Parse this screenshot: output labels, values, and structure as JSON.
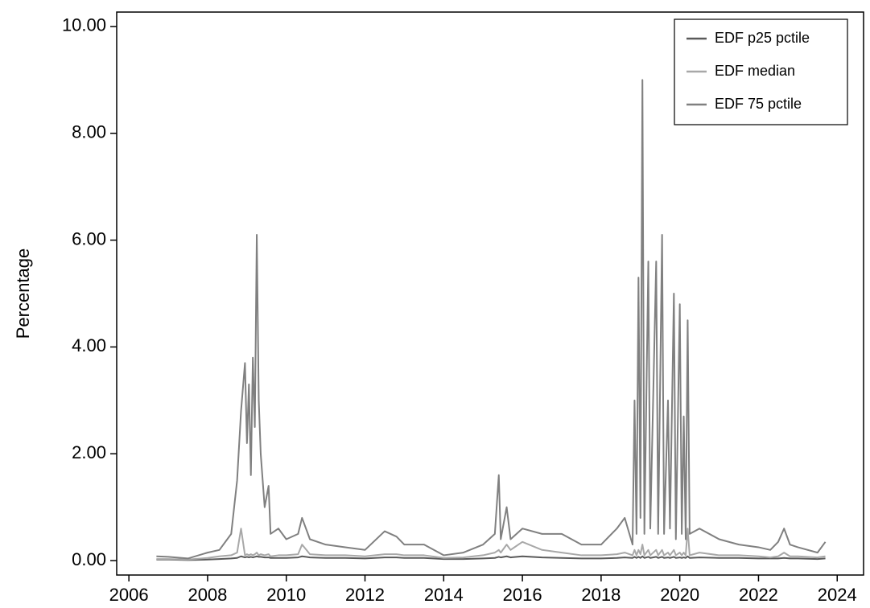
{
  "chart_data": {
    "type": "line",
    "y_label": "Percentage",
    "x": [
      2006.7,
      2007.0,
      2007.5,
      2008.0,
      2008.3,
      2008.6,
      2008.75,
      2008.85,
      2008.95,
      2009.0,
      2009.05,
      2009.1,
      2009.15,
      2009.2,
      2009.25,
      2009.3,
      2009.35,
      2009.45,
      2009.55,
      2009.6,
      2009.8,
      2010.0,
      2010.3,
      2010.4,
      2010.6,
      2011.0,
      2011.5,
      2012.0,
      2012.5,
      2012.8,
      2013.0,
      2013.5,
      2014.0,
      2014.5,
      2015.0,
      2015.3,
      2015.4,
      2015.45,
      2015.6,
      2015.7,
      2016.0,
      2016.5,
      2017.0,
      2017.5,
      2018.0,
      2018.4,
      2018.6,
      2018.8,
      2018.85,
      2018.9,
      2018.95,
      2019.0,
      2019.05,
      2019.1,
      2019.2,
      2019.25,
      2019.4,
      2019.45,
      2019.55,
      2019.6,
      2019.7,
      2019.75,
      2019.85,
      2019.9,
      2020.0,
      2020.05,
      2020.1,
      2020.15,
      2020.2,
      2020.25,
      2020.5,
      2021.0,
      2021.5,
      2022.0,
      2022.3,
      2022.5,
      2022.65,
      2022.8,
      2023.0,
      2023.5,
      2023.7
    ],
    "series": [
      {
        "name": "EDF p25 pctile",
        "color": "#5a5a5a",
        "values": [
          0.02,
          0.02,
          0.01,
          0.02,
          0.03,
          0.04,
          0.05,
          0.08,
          0.06,
          0.07,
          0.06,
          0.07,
          0.06,
          0.07,
          0.08,
          0.07,
          0.07,
          0.06,
          0.06,
          0.05,
          0.05,
          0.05,
          0.06,
          0.08,
          0.06,
          0.05,
          0.05,
          0.04,
          0.06,
          0.06,
          0.05,
          0.05,
          0.03,
          0.03,
          0.04,
          0.05,
          0.07,
          0.06,
          0.08,
          0.06,
          0.08,
          0.06,
          0.05,
          0.04,
          0.04,
          0.05,
          0.06,
          0.05,
          0.07,
          0.05,
          0.07,
          0.05,
          0.08,
          0.05,
          0.07,
          0.05,
          0.07,
          0.05,
          0.07,
          0.05,
          0.06,
          0.05,
          0.07,
          0.05,
          0.06,
          0.05,
          0.06,
          0.05,
          0.08,
          0.05,
          0.06,
          0.05,
          0.05,
          0.04,
          0.04,
          0.04,
          0.05,
          0.04,
          0.04,
          0.03,
          0.04
        ]
      },
      {
        "name": "EDF median",
        "color": "#a8a8a8",
        "values": [
          0.03,
          0.03,
          0.02,
          0.05,
          0.08,
          0.1,
          0.15,
          0.6,
          0.1,
          0.12,
          0.1,
          0.12,
          0.1,
          0.12,
          0.15,
          0.1,
          0.12,
          0.1,
          0.12,
          0.08,
          0.1,
          0.1,
          0.12,
          0.3,
          0.12,
          0.1,
          0.1,
          0.08,
          0.12,
          0.12,
          0.1,
          0.1,
          0.05,
          0.06,
          0.1,
          0.15,
          0.2,
          0.15,
          0.3,
          0.2,
          0.35,
          0.2,
          0.15,
          0.1,
          0.1,
          0.12,
          0.15,
          0.1,
          0.2,
          0.1,
          0.2,
          0.12,
          0.3,
          0.1,
          0.2,
          0.1,
          0.2,
          0.1,
          0.2,
          0.1,
          0.15,
          0.1,
          0.2,
          0.1,
          0.15,
          0.1,
          0.15,
          0.1,
          0.6,
          0.1,
          0.15,
          0.1,
          0.1,
          0.08,
          0.06,
          0.08,
          0.15,
          0.08,
          0.08,
          0.06,
          0.08
        ]
      },
      {
        "name": "EDF 75 pctile",
        "color": "#808080",
        "values": [
          0.08,
          0.07,
          0.04,
          0.15,
          0.2,
          0.5,
          1.5,
          2.8,
          3.7,
          2.2,
          3.3,
          1.6,
          3.8,
          2.5,
          6.1,
          3.0,
          2.0,
          1.0,
          1.4,
          0.5,
          0.6,
          0.4,
          0.5,
          0.8,
          0.4,
          0.3,
          0.25,
          0.2,
          0.55,
          0.45,
          0.3,
          0.3,
          0.1,
          0.15,
          0.3,
          0.5,
          1.6,
          0.4,
          1.0,
          0.4,
          0.6,
          0.5,
          0.5,
          0.3,
          0.3,
          0.6,
          0.8,
          0.3,
          3.0,
          0.5,
          5.3,
          0.8,
          9.0,
          0.5,
          5.6,
          0.6,
          5.6,
          0.5,
          6.1,
          0.5,
          3.0,
          0.6,
          5.0,
          0.4,
          4.8,
          0.5,
          2.7,
          0.4,
          4.5,
          0.5,
          0.6,
          0.4,
          0.3,
          0.25,
          0.2,
          0.35,
          0.6,
          0.3,
          0.25,
          0.15,
          0.35
        ]
      }
    ],
    "xlim": [
      2005.69,
      2024.67
    ],
    "xticks": [
      2006,
      2008,
      2010,
      2012,
      2014,
      2016,
      2018,
      2020,
      2022,
      2024
    ],
    "ylim": [
      -0.27,
      10.27
    ],
    "yticks": [
      {
        "value": 0,
        "label": "0.00"
      },
      {
        "value": 2,
        "label": "2.00"
      },
      {
        "value": 4,
        "label": "4.00"
      },
      {
        "value": 6,
        "label": "6.00"
      },
      {
        "value": 8,
        "label": "8.00"
      },
      {
        "value": 10,
        "label": "10.00"
      }
    ],
    "grid": false,
    "legend": "top-right"
  }
}
